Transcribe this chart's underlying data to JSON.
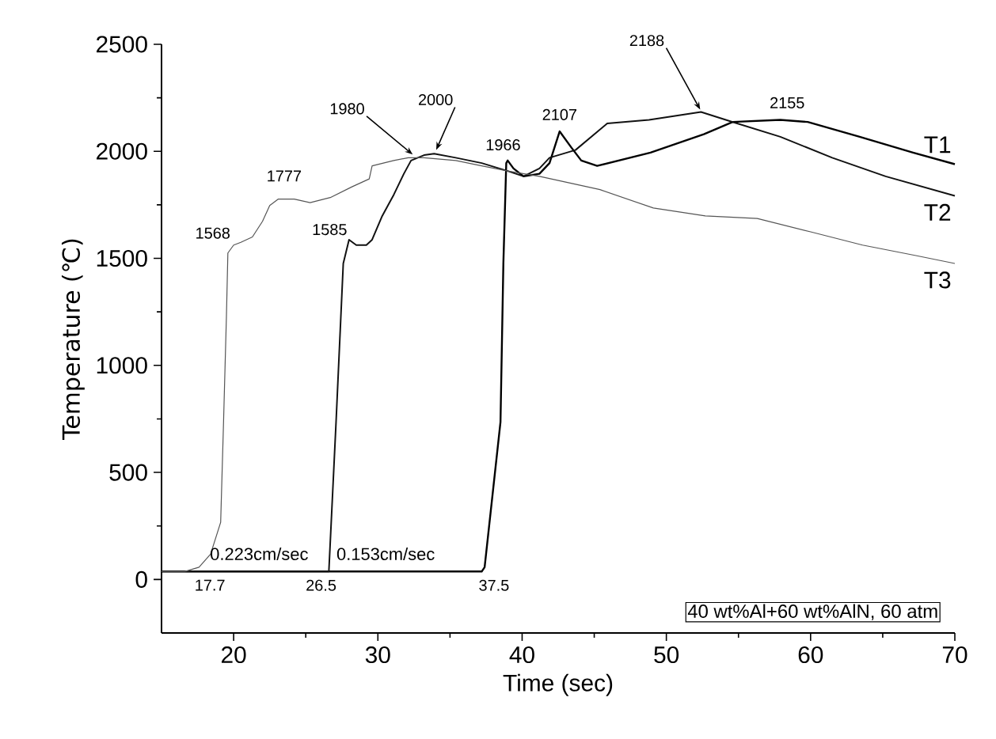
{
  "chart_data": {
    "type": "line",
    "xlabel": "Time (sec)",
    "ylabel": "Temperature (℃)",
    "xlim": [
      15,
      70
    ],
    "ylim": [
      -250,
      2500
    ],
    "xticks": [
      20,
      30,
      40,
      50,
      60,
      70
    ],
    "yticks": [
      0,
      500,
      1000,
      1500,
      2000,
      2500
    ],
    "grid": false,
    "marker": "none",
    "line_style": "solid",
    "series": [
      {
        "name": "T1",
        "color": "#000000",
        "x": [
          15,
          30,
          37.2,
          37.4,
          38.5,
          38.7,
          38.9,
          39.0,
          39.4,
          40.1,
          41.2,
          41.9,
          42.6,
          43.4,
          44.1,
          45.2,
          48.9,
          52.6,
          54.6,
          57.9,
          59.8,
          63.4,
          67.1,
          70
        ],
        "values": [
          37,
          37,
          37,
          57,
          735,
          1476,
          1945,
          1957,
          1920,
          1883,
          1895,
          1945,
          2093,
          2019,
          1957,
          1932,
          1994,
          2080,
          2137,
          2147,
          2137,
          2068,
          1994,
          1940
        ]
      },
      {
        "name": "T2",
        "color": "#111111",
        "x": [
          15,
          26.5,
          26.6,
          27.1,
          27.6,
          28.0,
          28.5,
          29.2,
          29.6,
          30.3,
          31.1,
          31.8,
          32.3,
          33.2,
          33.9,
          35.4,
          37.2,
          39.0,
          40.1,
          41.2,
          41.9,
          43.7,
          45.9,
          48.8,
          52.4,
          54.6,
          57.9,
          61.5,
          65.2,
          70
        ],
        "values": [
          37,
          37,
          37,
          735,
          1476,
          1587,
          1562,
          1562,
          1587,
          1698,
          1797,
          1895,
          1957,
          1982,
          1989,
          1970,
          1945,
          1908,
          1883,
          1920,
          1970,
          2006,
          2130,
          2147,
          2184,
          2137,
          2068,
          1970,
          1883,
          1792
        ]
      },
      {
        "name": "T3",
        "color": "#555555",
        "x": [
          15,
          16.6,
          17.6,
          18.4,
          19.1,
          19.3,
          19.5,
          19.6,
          20.0,
          20.5,
          21.3,
          22.0,
          22.5,
          23.1,
          24.2,
          25.3,
          26.0,
          26.7,
          28.2,
          29.4,
          29.6,
          31.1,
          32.1,
          33.2,
          35.4,
          37.2,
          39.0,
          41.2,
          45.4,
          49.1,
          52.7,
          56.3,
          60.0,
          63.6,
          67.3,
          70
        ],
        "values": [
          37,
          37,
          57,
          118,
          267,
          735,
          1230,
          1525,
          1562,
          1575,
          1600,
          1673,
          1747,
          1777,
          1777,
          1760,
          1772,
          1784,
          1834,
          1871,
          1932,
          1957,
          1970,
          1970,
          1957,
          1932,
          1908,
          1883,
          1821,
          1735,
          1698,
          1686,
          1624,
          1562,
          1513,
          1476
        ]
      }
    ],
    "annotations": [
      {
        "text": "1568",
        "x": 19.9,
        "y": 1568
      },
      {
        "text": "1777",
        "x": 23.5,
        "y": 1777
      },
      {
        "text": "1585",
        "x": 28.0,
        "y": 1585
      },
      {
        "text": "1980",
        "x": 32.5,
        "y": 1980
      },
      {
        "text": "2000",
        "x": 34.0,
        "y": 2000
      },
      {
        "text": "1966",
        "x": 38.9,
        "y": 1966
      },
      {
        "text": "2107",
        "x": 42.6,
        "y": 2107
      },
      {
        "text": "2188",
        "x": 52.4,
        "y": 2188
      },
      {
        "text": "2155",
        "x": 57.5,
        "y": 2155
      },
      {
        "text": "17.7",
        "x": 17.7,
        "y": 37
      },
      {
        "text": "26.5",
        "x": 26.5,
        "y": 37
      },
      {
        "text": "37.5",
        "x": 37.5,
        "y": 37
      },
      "0.223cm/sec",
      "0.153cm/sec",
      "40 wt%Al+60 wt%AlN, 60 atm"
    ]
  }
}
